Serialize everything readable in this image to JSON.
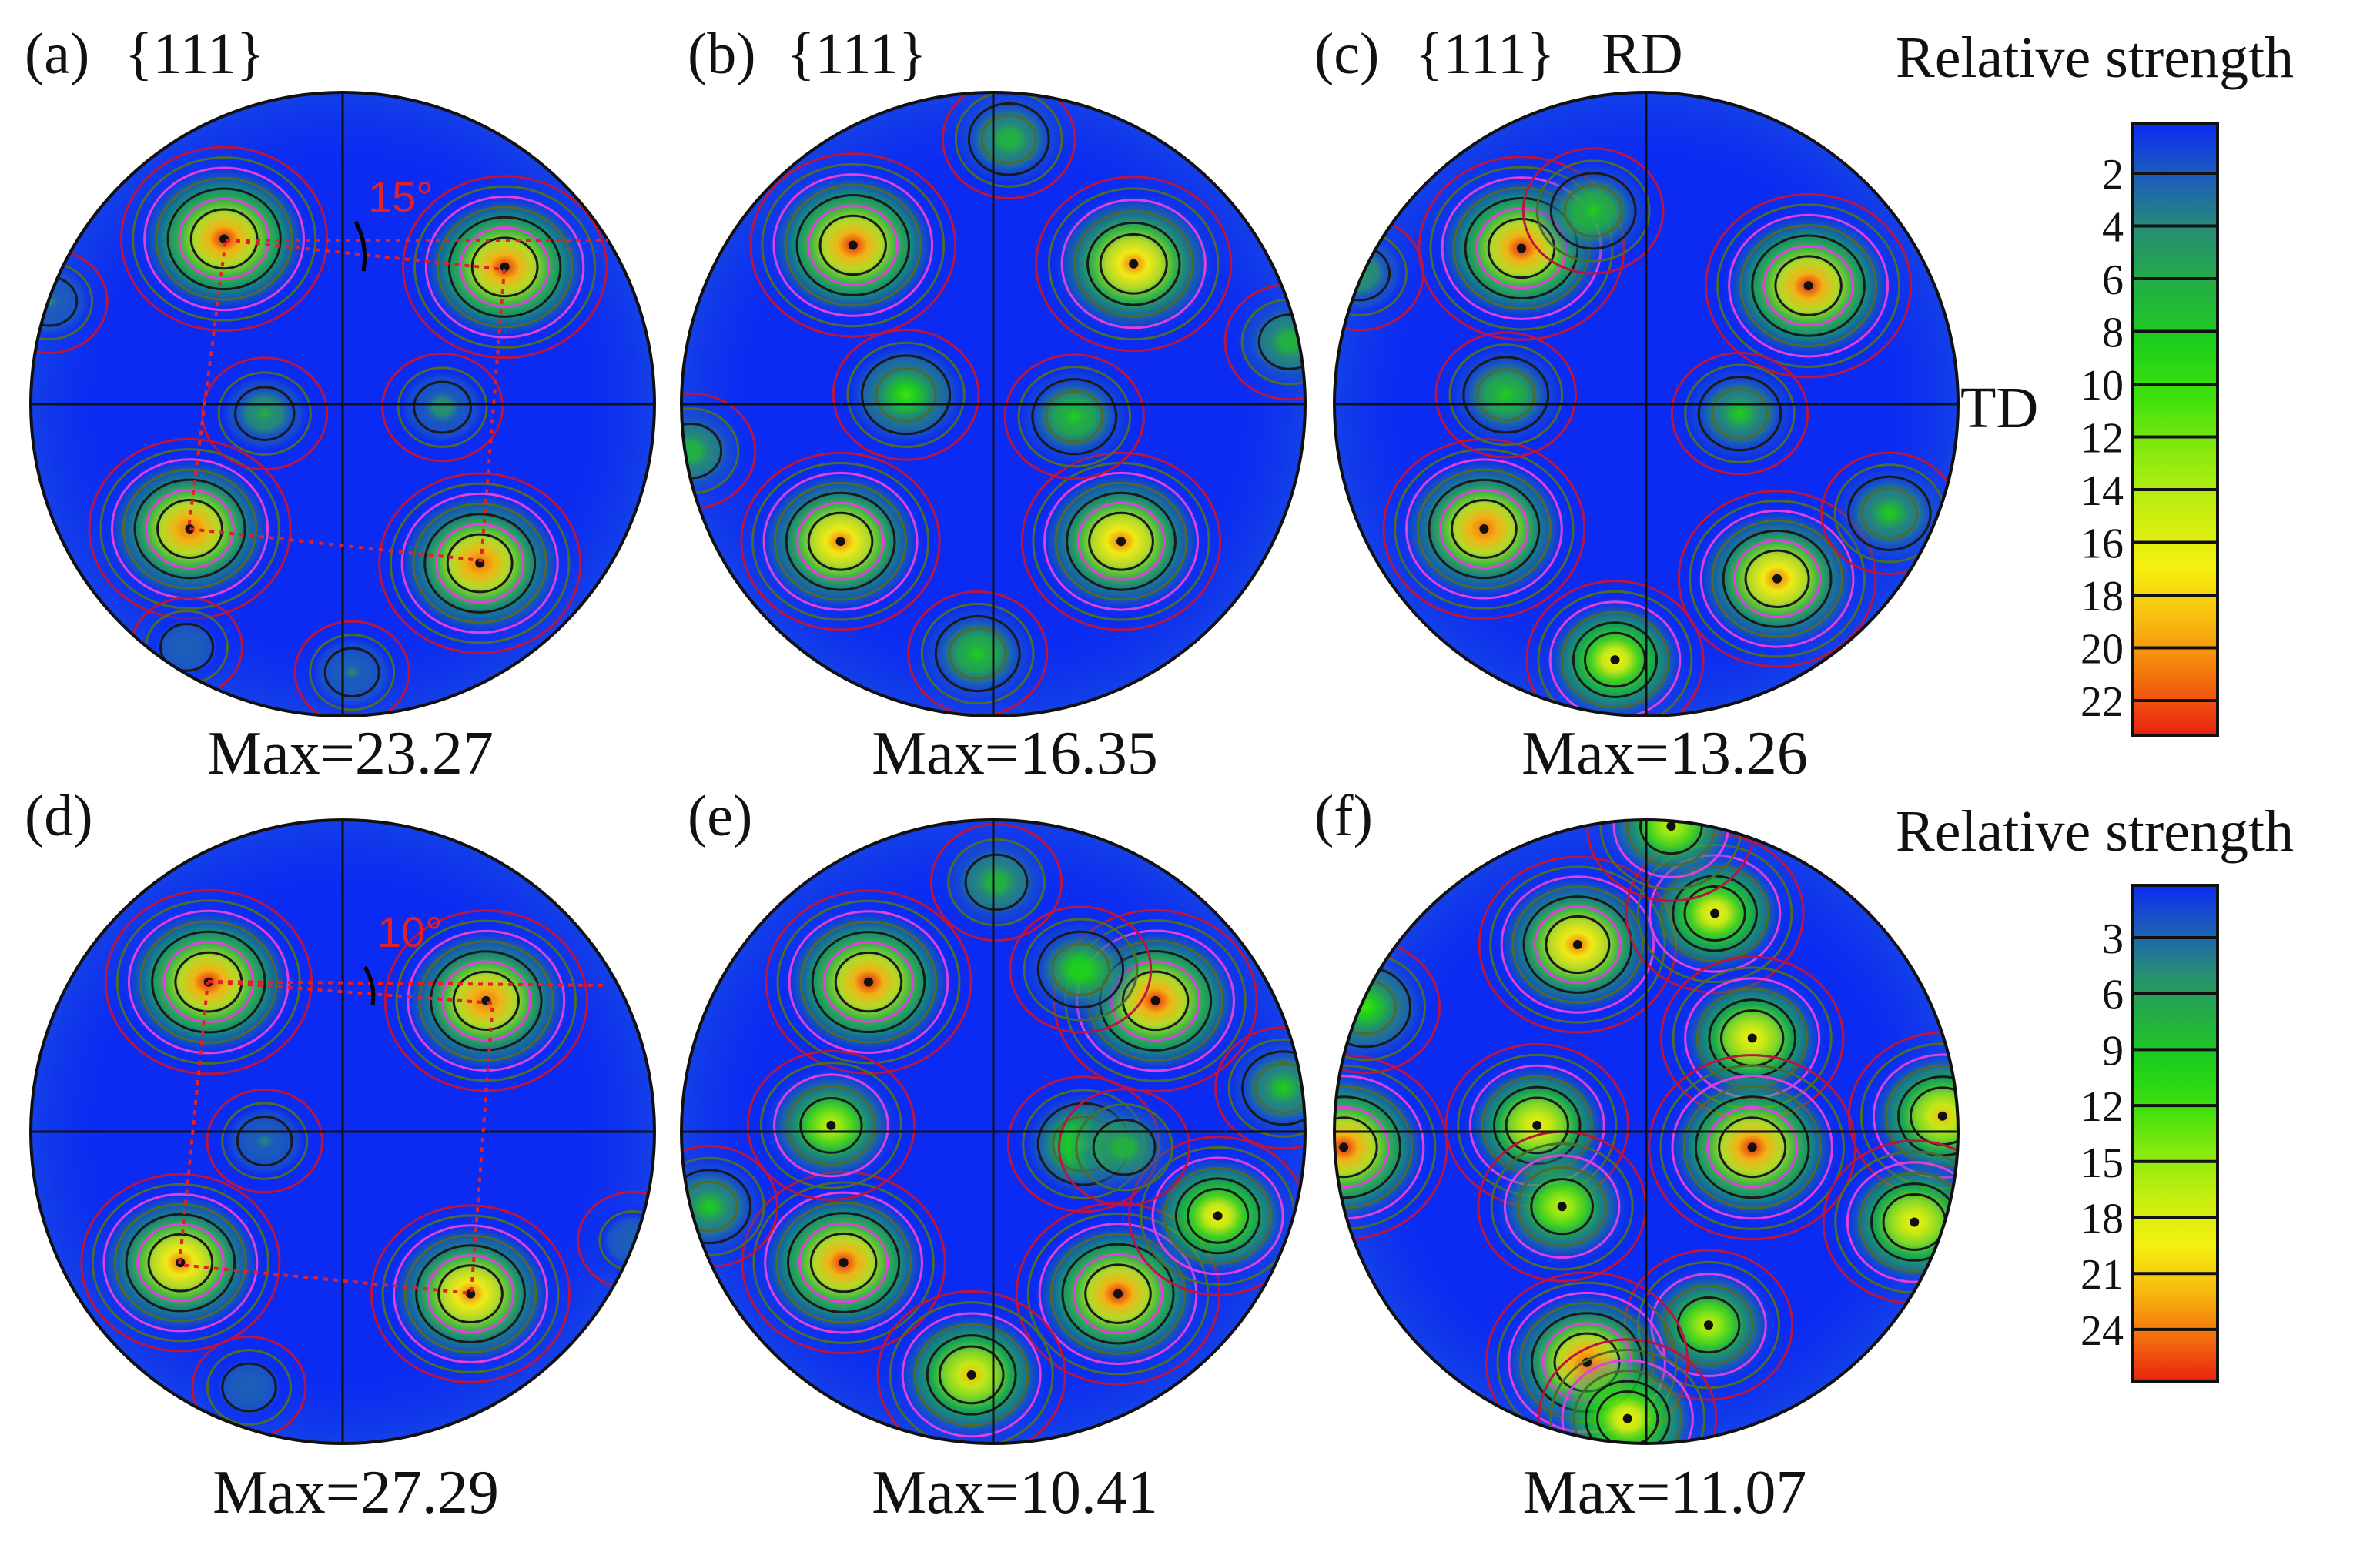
{
  "figure": {
    "panels": [
      {
        "label": "(a)",
        "plane": "{111}",
        "rd": "",
        "td": "",
        "max_label": "Max=23.27",
        "angle_label": "15°",
        "peaks": [
          [
            -0.38,
            -0.53,
            23.0
          ],
          [
            0.52,
            -0.44,
            22.5
          ],
          [
            -0.49,
            0.4,
            22.0
          ],
          [
            0.44,
            0.51,
            22.0
          ],
          [
            -0.25,
            0.03,
            5.5
          ],
          [
            0.32,
            0.01,
            4.5
          ],
          [
            -0.94,
            -0.33,
            3.5
          ],
          [
            0.03,
            0.86,
            3.2
          ],
          [
            -0.5,
            0.78,
            2.5
          ]
        ]
      },
      {
        "label": "(b)",
        "plane": "{111}",
        "rd": "",
        "td": "",
        "max_label": "Max=16.35",
        "angle_label": "",
        "peaks": [
          [
            -0.45,
            -0.51,
            16.0
          ],
          [
            0.45,
            -0.45,
            14.5
          ],
          [
            -0.49,
            0.44,
            15.0
          ],
          [
            0.41,
            0.44,
            15.0
          ],
          [
            -0.28,
            -0.03,
            7.0
          ],
          [
            0.26,
            0.04,
            6.0
          ],
          [
            0.05,
            -0.85,
            5.0
          ],
          [
            -0.05,
            0.8,
            6.0
          ],
          [
            -0.97,
            0.15,
            4.5
          ],
          [
            0.95,
            -0.2,
            4.5
          ]
        ]
      },
      {
        "label": "(c)",
        "plane": "{111}",
        "rd": "RD",
        "td": "TD",
        "max_label": "Max=13.26",
        "angle_label": "",
        "peaks": [
          [
            -0.4,
            -0.5,
            13.0
          ],
          [
            0.52,
            -0.38,
            13.0
          ],
          [
            -0.52,
            0.4,
            12.5
          ],
          [
            0.42,
            0.56,
            12.0
          ],
          [
            -0.45,
            -0.03,
            5.0
          ],
          [
            0.3,
            0.03,
            4.5
          ],
          [
            -0.1,
            0.82,
            9.5
          ],
          [
            0.78,
            0.35,
            4.5
          ],
          [
            -0.17,
            -0.62,
            5.0
          ],
          [
            -0.92,
            -0.42,
            3.5
          ]
        ]
      },
      {
        "label": "(d)",
        "plane": "",
        "rd": "",
        "td": "",
        "max_label": "Max=27.29",
        "angle_label": "10°",
        "peaks": [
          [
            -0.43,
            -0.48,
            27.0
          ],
          [
            0.46,
            -0.42,
            26.0
          ],
          [
            -0.52,
            0.42,
            25.0
          ],
          [
            0.41,
            0.52,
            25.0
          ],
          [
            -0.25,
            0.03,
            4.0
          ],
          [
            -0.3,
            0.82,
            3.5
          ],
          [
            0.93,
            0.35,
            2.5
          ]
        ]
      },
      {
        "label": "(e)",
        "plane": "",
        "rd": "",
        "td": "",
        "max_label": "Max=10.41",
        "angle_label": "",
        "peaks": [
          [
            -0.4,
            -0.48,
            10.2
          ],
          [
            0.52,
            -0.42,
            10.0
          ],
          [
            -0.48,
            0.42,
            10.0
          ],
          [
            0.4,
            0.52,
            10.0
          ],
          [
            -0.52,
            -0.02,
            6.5
          ],
          [
            0.29,
            0.04,
            5.0
          ],
          [
            -0.07,
            0.78,
            8.5
          ],
          [
            0.72,
            0.27,
            7.5
          ],
          [
            0.01,
            -0.8,
            3.0
          ],
          [
            0.28,
            -0.52,
            4.0
          ],
          [
            -0.91,
            0.24,
            3.5
          ],
          [
            0.93,
            -0.14,
            3.5
          ],
          [
            0.42,
            0.05,
            3.0
          ]
        ]
      },
      {
        "label": "(f)",
        "plane": "",
        "rd": "",
        "td": "",
        "max_label": "Max=11.07",
        "angle_label": "",
        "peaks": [
          [
            -0.22,
            -0.6,
            10.0
          ],
          [
            0.22,
            -0.7,
            8.0
          ],
          [
            0.34,
            -0.3,
            8.5
          ],
          [
            0.34,
            0.05,
            11.0
          ],
          [
            -0.35,
            -0.02,
            8.5
          ],
          [
            -0.27,
            0.24,
            7.0
          ],
          [
            0.2,
            0.62,
            7.0
          ],
          [
            -0.19,
            0.74,
            10.5
          ],
          [
            -0.06,
            0.92,
            8.0
          ],
          [
            -0.97,
            0.05,
            11.0
          ],
          [
            0.95,
            -0.05,
            9.0
          ],
          [
            0.86,
            0.29,
            8.5
          ],
          [
            -0.9,
            -0.4,
            5.0
          ],
          [
            0.08,
            -0.98,
            7.0
          ]
        ]
      }
    ],
    "legends": [
      {
        "title": "Relative strength",
        "ticks": [
          "2",
          "4",
          "6",
          "8",
          "10",
          "12",
          "14",
          "16",
          "18",
          "20",
          "22"
        ]
      },
      {
        "title": "Relative strength",
        "ticks": [
          "3",
          "6",
          "9",
          "12",
          "15",
          "18",
          "21",
          "24"
        ]
      }
    ],
    "colors": {
      "background": "#0b2bf2",
      "ramp": [
        "#0b2bf2",
        "#1d5fb8",
        "#27906f",
        "#23b140",
        "#1ed11a",
        "#43e10c",
        "#8dea0f",
        "#c9ee10",
        "#f6f010",
        "#f8b80f",
        "#f3700d",
        "#e82010"
      ],
      "contour_low": "#b71642",
      "contour_mid": "#4b6b2f",
      "contour_high": "#1a1a1a",
      "contour_magenta": "#e040e0",
      "dotted_line": "#e0202a"
    }
  }
}
